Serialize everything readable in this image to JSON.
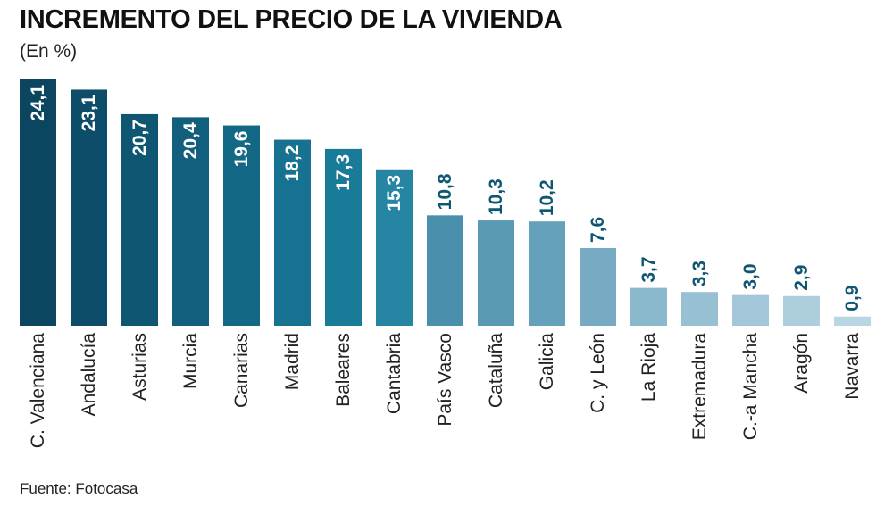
{
  "title": "INCREMENTO DEL PRECIO DE LA VIVIENDA",
  "subtitle": "(En %)",
  "source": "Fuente: Fotocasa",
  "chart_data": {
    "type": "bar",
    "title": "INCREMENTO DEL PRECIO DE LA VIVIENDA",
    "subtitle": "(En %)",
    "categories": [
      "C. Valenciana",
      "Andalucía",
      "Asturias",
      "Murcia",
      "Canarias",
      "Madrid",
      "Baleares",
      "Cantabria",
      "País Vasco",
      "Cataluña",
      "Galicia",
      "C. y León",
      "La Rioja",
      "Extremadura",
      "C.-a Mancha",
      "Aragón",
      "Navarra"
    ],
    "values": [
      24.1,
      23.1,
      20.7,
      20.4,
      19.6,
      18.2,
      17.3,
      15.3,
      10.8,
      10.3,
      10.2,
      7.6,
      3.7,
      3.3,
      3.0,
      2.9,
      0.9
    ],
    "value_labels": [
      "24,1",
      "23,1",
      "20,7",
      "20,4",
      "19,6",
      "18,2",
      "17,3",
      "15,3",
      "10,8",
      "10,3",
      "10,2",
      "7,6",
      "3,7",
      "3,3",
      "3,0",
      "2,9",
      "0,9"
    ],
    "colors": [
      "#0b4560",
      "#0d4d6a",
      "#0f5673",
      "#115f7d",
      "#136886",
      "#167290",
      "#1a7b98",
      "#2585a2",
      "#4a90ad",
      "#5a9ab5",
      "#66a1bc",
      "#76abc3",
      "#8ab8cc",
      "#98c0d3",
      "#a3c7d8",
      "#adcedd",
      "#b9d6e4"
    ],
    "label_color_inside": "#ffffff",
    "label_color_outside": "#0f5673",
    "ylim": [
      0,
      24.1
    ],
    "grid": false,
    "legend": "none"
  }
}
